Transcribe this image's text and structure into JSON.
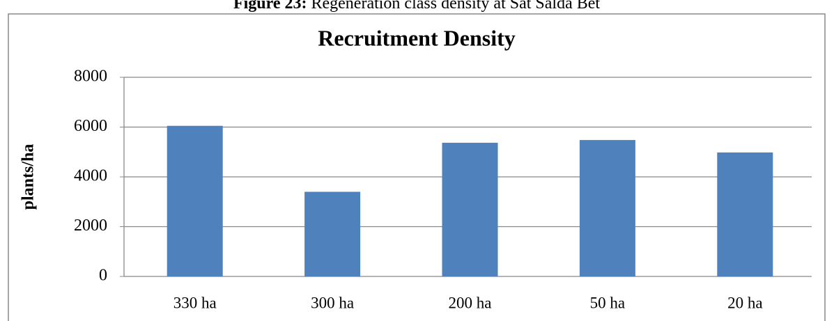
{
  "caption": {
    "label": "Figure 23:",
    "text": "Regeneration class density at Sat Salda Bet"
  },
  "chart_data": {
    "type": "bar",
    "title": "Recruitment Density",
    "y_label": "plants/ha",
    "categories": [
      "330 ha",
      "300 ha",
      "200 ha",
      "50 ha",
      "20 ha"
    ],
    "values": [
      6050,
      3400,
      5370,
      5480,
      4980
    ],
    "color": "#4f81bd",
    "ylim": [
      0,
      8000
    ],
    "yticks": [
      0,
      2000,
      4000,
      6000,
      8000
    ],
    "grid": true
  }
}
